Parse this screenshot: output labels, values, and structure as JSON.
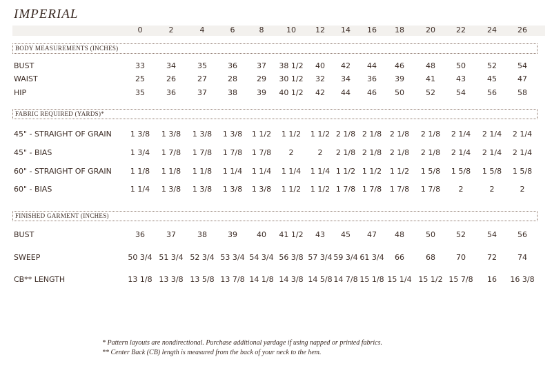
{
  "title": "IMPERIAL",
  "sizes": [
    0,
    2,
    4,
    6,
    8,
    10,
    12,
    14,
    16,
    18,
    20,
    22,
    24,
    26
  ],
  "sections": [
    {
      "heading": "BODY MEASUREMENTS (INCHES)",
      "rows": [
        {
          "label": "BUST",
          "values": [
            "33",
            "34",
            "35",
            "36",
            "37",
            "38 1/2",
            "40",
            "42",
            "44",
            "46",
            "48",
            "50",
            "52",
            "54"
          ]
        },
        {
          "label": "WAIST",
          "values": [
            "25",
            "26",
            "27",
            "28",
            "29",
            "30 1/2",
            "32",
            "34",
            "36",
            "39",
            "41",
            "43",
            "45",
            "47"
          ]
        },
        {
          "label": "HIP",
          "values": [
            "35",
            "36",
            "37",
            "38",
            "39",
            "40 1/2",
            "42",
            "44",
            "46",
            "50",
            "52",
            "54",
            "56",
            "58"
          ]
        }
      ]
    },
    {
      "heading": "FABRIC REQUIRED (YARDS)*",
      "rows": [
        {
          "label": "45\" - STRAIGHT OF GRAIN",
          "values": [
            "1 3/8",
            "1 3/8",
            "1 3/8",
            "1 3/8",
            "1 1/2",
            "1 1/2",
            "1 1/2",
            "2 1/8",
            "2 1/8",
            "2 1/8",
            "2 1/8",
            "2 1/4",
            "2 1/4",
            "2 1/4"
          ]
        },
        {
          "label": "45\" - BIAS",
          "values": [
            "1 3/4",
            "1 7/8",
            "1 7/8",
            "1 7/8",
            "1 7/8",
            "2",
            "2",
            "2 1/8",
            "2 1/8",
            "2 1/8",
            "2 1/8",
            "2 1/4",
            "2 1/4",
            "2 1/4"
          ]
        },
        {
          "label": "60\" - STRAIGHT OF GRAIN",
          "values": [
            "1 1/8",
            "1 1/8",
            "1 1/8",
            "1 1/4",
            "1 1/4",
            "1 1/4",
            "1 1/4",
            "1 1/2",
            "1 1/2",
            "1 1/2",
            "1 5/8",
            "1 5/8",
            "1 5/8",
            "1 5/8"
          ]
        },
        {
          "label": "60\" - BIAS",
          "values": [
            "1 1/4",
            "1 3/8",
            "1 3/8",
            "1 3/8",
            "1 3/8",
            "1 1/2",
            "1 1/2",
            "1 7/8",
            "1 7/8",
            "1 7/8",
            "1 7/8",
            "2",
            "2",
            "2"
          ]
        }
      ]
    },
    {
      "heading": "FINISHED GARMENT (INCHES)",
      "rows": [
        {
          "label": "BUST",
          "values": [
            "36",
            "37",
            "38",
            "39",
            "40",
            "41 1/2",
            "43",
            "45",
            "47",
            "48",
            "50",
            "52",
            "54",
            "56"
          ]
        },
        {
          "label": "SWEEP",
          "values": [
            "50 3/4",
            "51 3/4",
            "52 3/4",
            "53 3/4",
            "54 3/4",
            "56 3/8",
            "57 3/4",
            "59 3/4",
            "61 3/4",
            "66",
            "68",
            "70",
            "72",
            "74"
          ]
        },
        {
          "label": "CB** LENGTH",
          "values": [
            "13 1/8",
            "13 3/8",
            "13 5/8",
            "13 7/8",
            "14 1/8",
            "14 3/8",
            "14 5/8",
            "14 7/8",
            "15 1/8",
            "15 1/4",
            "15 1/2",
            "15 7/8",
            "16",
            "16 3/8"
          ]
        }
      ]
    }
  ],
  "footnotes": [
    "* Pattern layouts are nondirectional. Purchase additional yardage if using napped or printed fabrics.",
    "** Center Back (CB) length is measured from the back of your neck to the hem."
  ]
}
